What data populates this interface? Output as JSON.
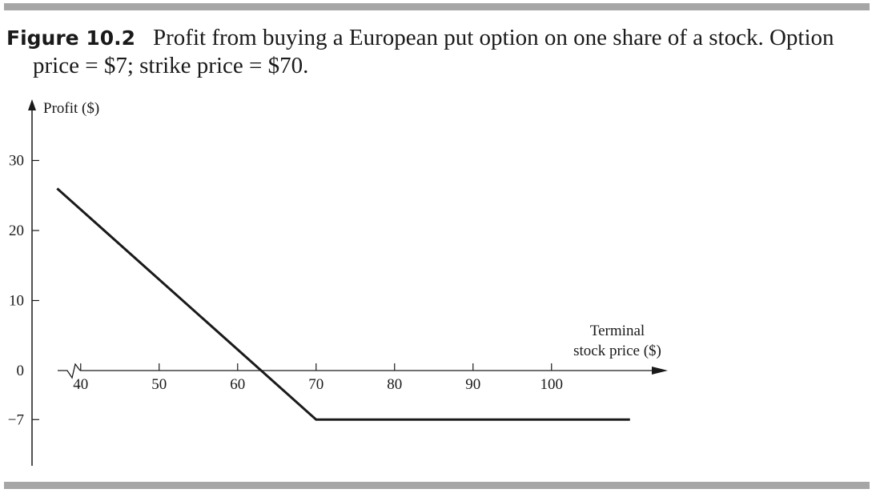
{
  "caption": {
    "label": "Figure 10.2",
    "text_line1": "Profit from buying a European put option on one share of a stock. Option",
    "text_line2": "price = $7; strike price = $70."
  },
  "chart_data": {
    "type": "line",
    "ylabel": "Profit ($)",
    "xlabel_line1": "Terminal",
    "xlabel_line2": "stock price ($)",
    "x_ticks": [
      40,
      50,
      60,
      70,
      80,
      90,
      100
    ],
    "y_ticks": [
      30,
      20,
      10,
      0,
      -7
    ],
    "y_tick_labels": [
      "30",
      "20",
      "10",
      "0",
      "−7"
    ],
    "axis_break": true,
    "series": [
      {
        "x": [
          37,
          63,
          70,
          110
        ],
        "y": [
          26,
          0,
          -7,
          -7
        ]
      }
    ],
    "xlim": [
      34,
      112
    ],
    "ylim": [
      -13,
      36
    ]
  }
}
